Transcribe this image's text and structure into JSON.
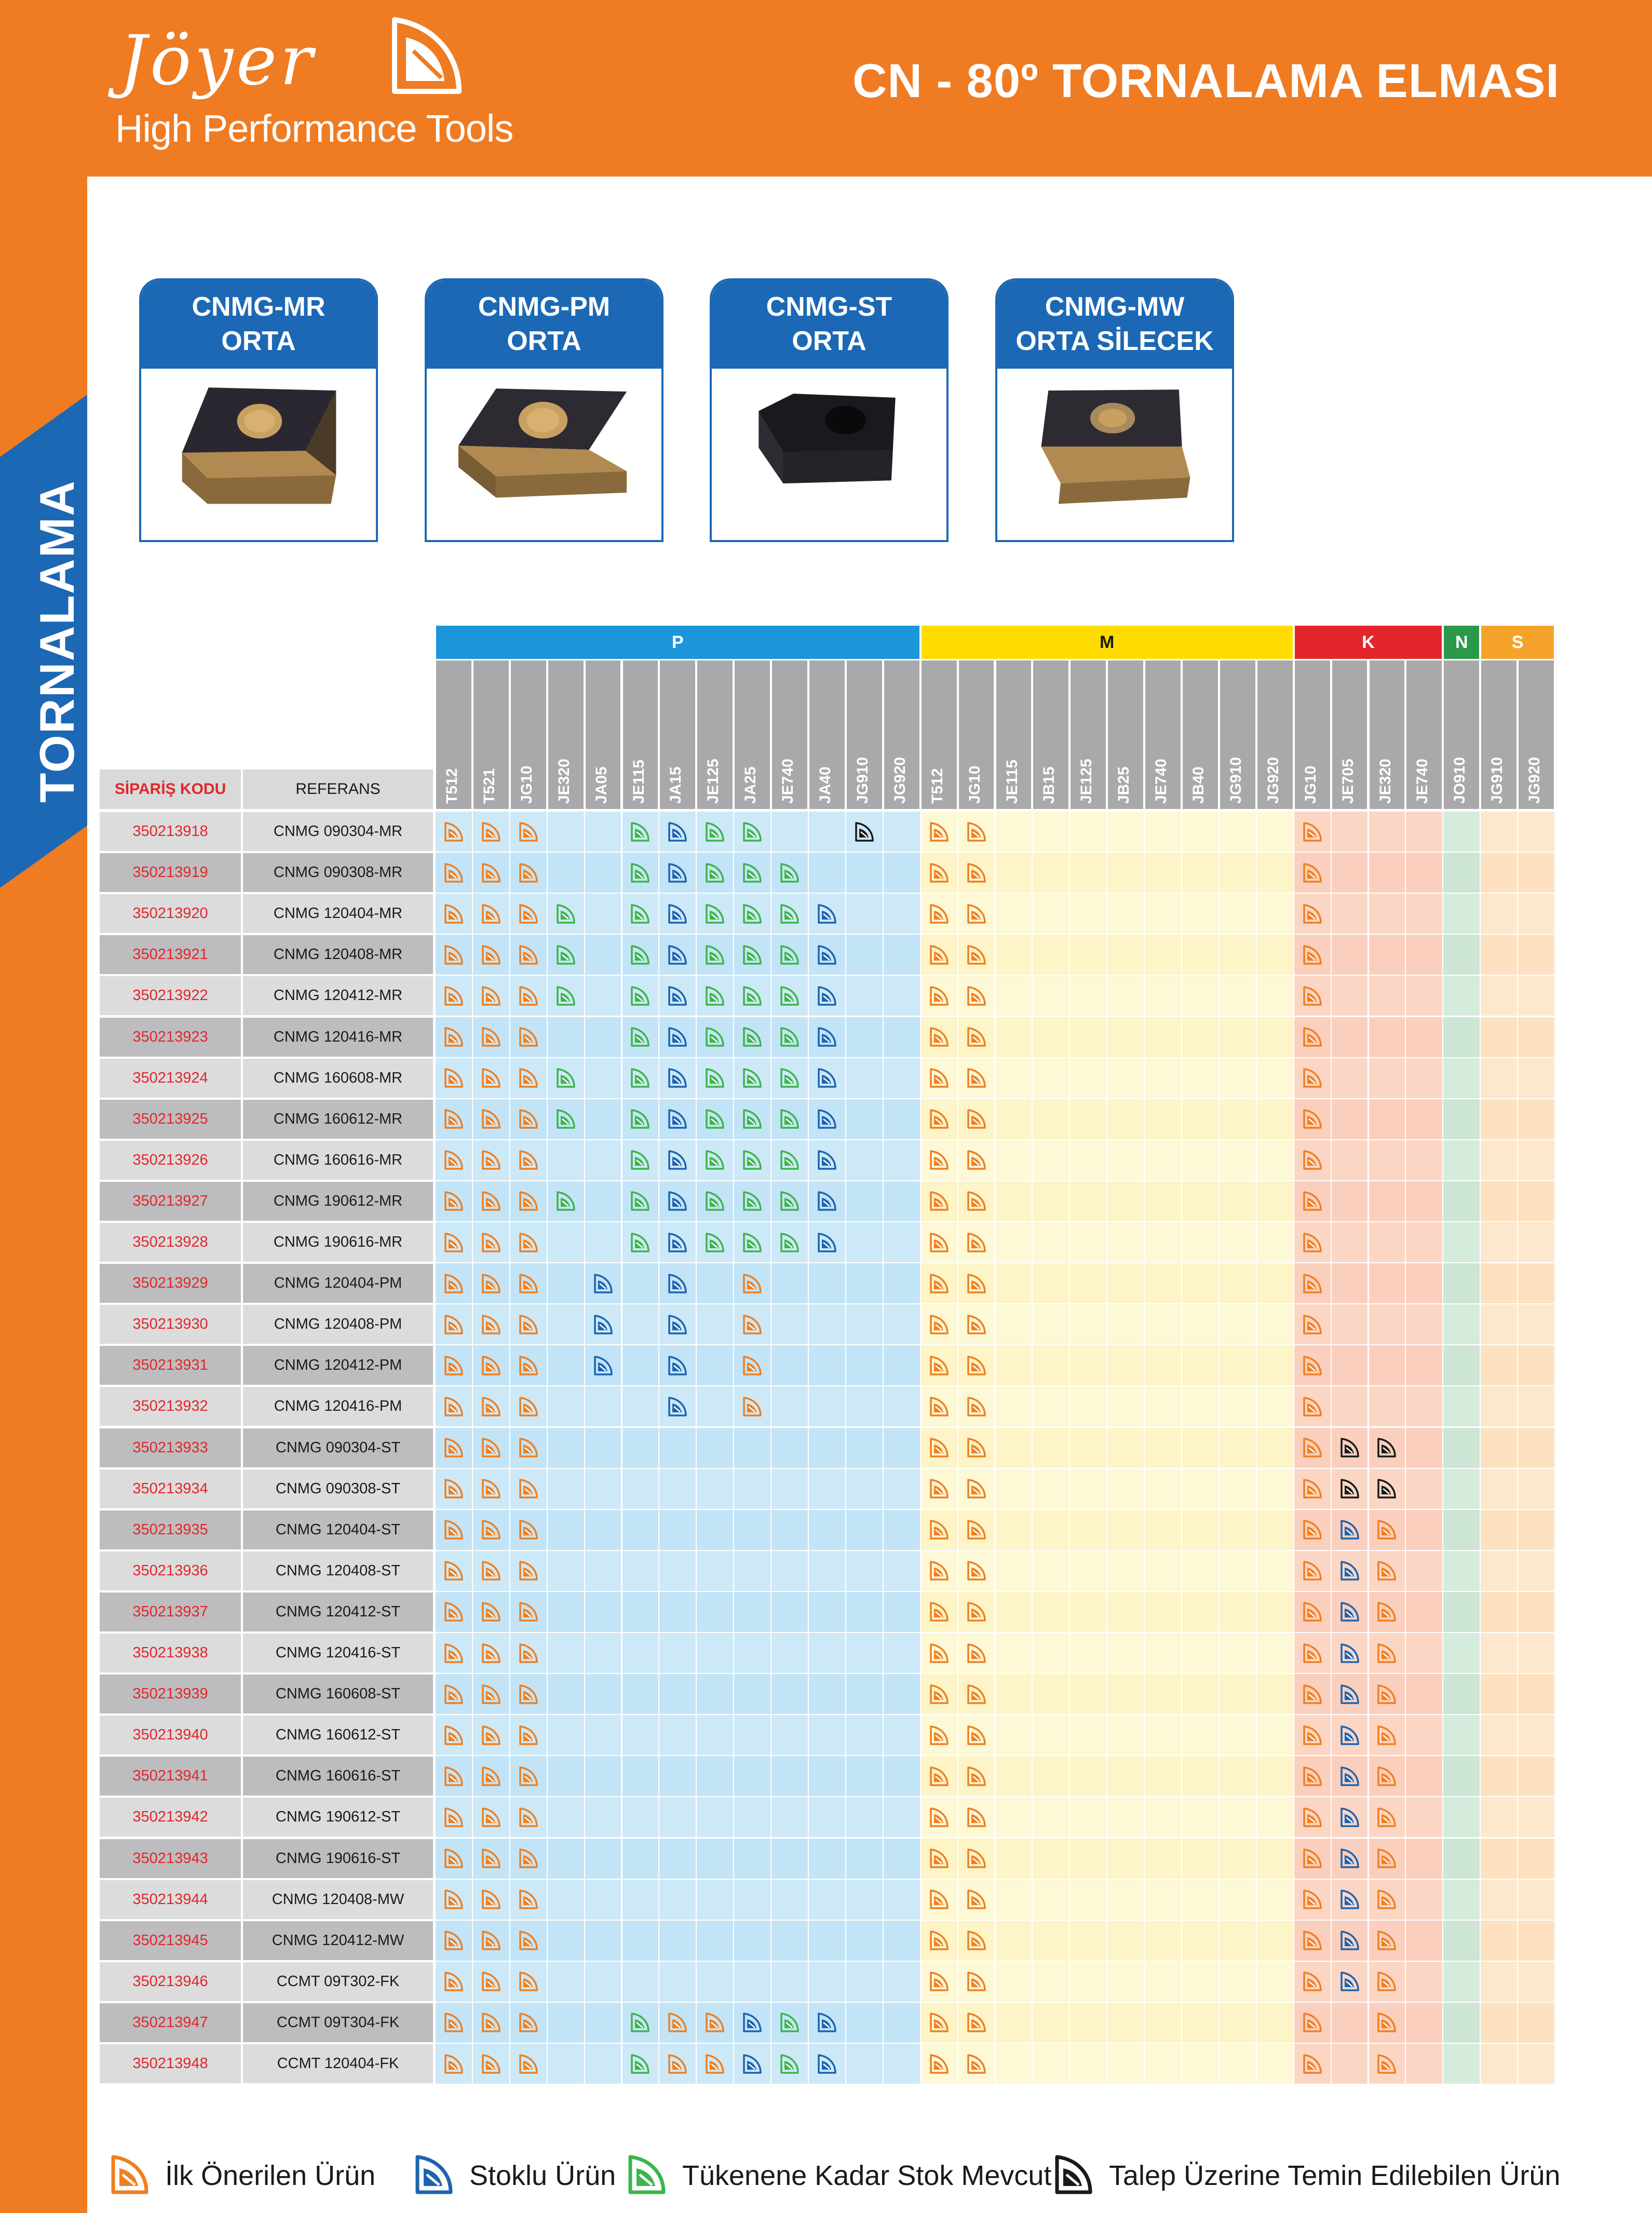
{
  "header": {
    "brand_script": "Jöyer",
    "brand_tagline": "High Performance Tools",
    "title": "CN - 80º TORNALAMA ELMASI"
  },
  "side_label": "TORNALAMA",
  "colors": {
    "orange": "#ef7b22",
    "blue": "#1c68b4",
    "P": "#1b96d8",
    "M": "#ffdc00",
    "K": "#e2262b",
    "N": "#2a9a4a",
    "S": "#f6a32b",
    "icon_orange": "#f07f1f",
    "icon_blue": "#1c64b0",
    "icon_green": "#3cb54a",
    "icon_black": "#1a1a1a"
  },
  "cards": [
    {
      "line1": "CNMG-MR",
      "line2": "ORTA",
      "insert_color": "gold-dark"
    },
    {
      "line1": "CNMG-PM",
      "line2": "ORTA",
      "insert_color": "gold-dark"
    },
    {
      "line1": "CNMG-ST",
      "line2": "ORTA",
      "insert_color": "black"
    },
    {
      "line1": "CNMG-MW",
      "line2": "ORTA SİLECEK",
      "insert_color": "gold-dark"
    }
  ],
  "table": {
    "col_code_header": "SİPARİŞ KODU",
    "col_ref_header": "REFERANS",
    "groups": [
      {
        "key": "P",
        "label": "P",
        "grades": [
          "T512",
          "T521",
          "JG10",
          "JE320",
          "JA05",
          "JE115",
          "JA15",
          "JE125",
          "JA25",
          "JE740",
          "JA40",
          "JG910",
          "JG920"
        ]
      },
      {
        "key": "M",
        "label": "M",
        "grades": [
          "T512",
          "JG10",
          "JE115",
          "JB15",
          "JE125",
          "JB25",
          "JE740",
          "JB40",
          "JG910",
          "JG920"
        ]
      },
      {
        "key": "K",
        "label": "K",
        "grades": [
          "JG10",
          "JE705",
          "JE320",
          "JE740"
        ]
      },
      {
        "key": "N",
        "label": "N",
        "grades": [
          "JO910"
        ]
      },
      {
        "key": "S",
        "label": "S",
        "grades": [
          "JG910",
          "JG920"
        ]
      }
    ],
    "rows": [
      {
        "code": "350213918",
        "ref": "CNMG 090304-MR",
        "icons": {
          "0": "o",
          "1": "o",
          "2": "o",
          "5": "g",
          "6": "b",
          "7": "g",
          "8": "g",
          "11": "k",
          "13": "o",
          "14": "o",
          "23": "o"
        }
      },
      {
        "code": "350213919",
        "ref": "CNMG 090308-MR",
        "icons": {
          "0": "o",
          "1": "o",
          "2": "o",
          "5": "g",
          "6": "b",
          "7": "g",
          "8": "g",
          "9": "g",
          "13": "o",
          "14": "o",
          "23": "o"
        }
      },
      {
        "code": "350213920",
        "ref": "CNMG 120404-MR",
        "icons": {
          "0": "o",
          "1": "o",
          "2": "o",
          "3": "g",
          "5": "g",
          "6": "b",
          "7": "g",
          "8": "g",
          "9": "g",
          "10": "b",
          "13": "o",
          "14": "o",
          "23": "o"
        }
      },
      {
        "code": "350213921",
        "ref": "CNMG 120408-MR",
        "icons": {
          "0": "o",
          "1": "o",
          "2": "o",
          "3": "g",
          "5": "g",
          "6": "b",
          "7": "g",
          "8": "g",
          "9": "g",
          "10": "b",
          "13": "o",
          "14": "o",
          "23": "o"
        }
      },
      {
        "code": "350213922",
        "ref": "CNMG 120412-MR",
        "icons": {
          "0": "o",
          "1": "o",
          "2": "o",
          "3": "g",
          "5": "g",
          "6": "b",
          "7": "g",
          "8": "g",
          "9": "g",
          "10": "b",
          "13": "o",
          "14": "o",
          "23": "o"
        }
      },
      {
        "code": "350213923",
        "ref": "CNMG 120416-MR",
        "icons": {
          "0": "o",
          "1": "o",
          "2": "o",
          "5": "g",
          "6": "b",
          "7": "g",
          "8": "g",
          "9": "g",
          "10": "b",
          "13": "o",
          "14": "o",
          "23": "o"
        }
      },
      {
        "code": "350213924",
        "ref": "CNMG 160608-MR",
        "icons": {
          "0": "o",
          "1": "o",
          "2": "o",
          "3": "g",
          "5": "g",
          "6": "b",
          "7": "g",
          "8": "g",
          "9": "g",
          "10": "b",
          "13": "o",
          "14": "o",
          "23": "o"
        }
      },
      {
        "code": "350213925",
        "ref": "CNMG 160612-MR",
        "icons": {
          "0": "o",
          "1": "o",
          "2": "o",
          "3": "g",
          "5": "g",
          "6": "b",
          "7": "g",
          "8": "g",
          "9": "g",
          "10": "b",
          "13": "o",
          "14": "o",
          "23": "o"
        }
      },
      {
        "code": "350213926",
        "ref": "CNMG 160616-MR",
        "icons": {
          "0": "o",
          "1": "o",
          "2": "o",
          "5": "g",
          "6": "b",
          "7": "g",
          "8": "g",
          "9": "g",
          "10": "b",
          "13": "o",
          "14": "o",
          "23": "o"
        }
      },
      {
        "code": "350213927",
        "ref": "CNMG 190612-MR",
        "icons": {
          "0": "o",
          "1": "o",
          "2": "o",
          "3": "g",
          "5": "g",
          "6": "b",
          "7": "g",
          "8": "g",
          "9": "g",
          "10": "b",
          "13": "o",
          "14": "o",
          "23": "o"
        }
      },
      {
        "code": "350213928",
        "ref": "CNMG 190616-MR",
        "icons": {
          "0": "o",
          "1": "o",
          "2": "o",
          "5": "g",
          "6": "b",
          "7": "g",
          "8": "g",
          "9": "g",
          "10": "b",
          "13": "o",
          "14": "o",
          "23": "o"
        }
      },
      {
        "code": "350213929",
        "ref": "CNMG 120404-PM",
        "icons": {
          "0": "o",
          "1": "o",
          "2": "o",
          "4": "b",
          "6": "b",
          "8": "o",
          "13": "o",
          "14": "o",
          "23": "o"
        }
      },
      {
        "code": "350213930",
        "ref": "CNMG 120408-PM",
        "icons": {
          "0": "o",
          "1": "o",
          "2": "o",
          "4": "b",
          "6": "b",
          "8": "o",
          "13": "o",
          "14": "o",
          "23": "o"
        }
      },
      {
        "code": "350213931",
        "ref": "CNMG 120412-PM",
        "icons": {
          "0": "o",
          "1": "o",
          "2": "o",
          "4": "b",
          "6": "b",
          "8": "o",
          "13": "o",
          "14": "o",
          "23": "o"
        }
      },
      {
        "code": "350213932",
        "ref": "CNMG 120416-PM",
        "icons": {
          "0": "o",
          "1": "o",
          "2": "o",
          "6": "b",
          "8": "o",
          "13": "o",
          "14": "o",
          "23": "o"
        }
      },
      {
        "code": "350213933",
        "ref": "CNMG 090304-ST",
        "icons": {
          "0": "o",
          "1": "o",
          "2": "o",
          "13": "o",
          "14": "o",
          "23": "o",
          "24": "k",
          "25": "k"
        }
      },
      {
        "code": "350213934",
        "ref": "CNMG 090308-ST",
        "icons": {
          "0": "o",
          "1": "o",
          "2": "o",
          "13": "o",
          "14": "o",
          "23": "o",
          "24": "k",
          "25": "k"
        }
      },
      {
        "code": "350213935",
        "ref": "CNMG 120404-ST",
        "icons": {
          "0": "o",
          "1": "o",
          "2": "o",
          "13": "o",
          "14": "o",
          "23": "o",
          "24": "b",
          "25": "o"
        }
      },
      {
        "code": "350213936",
        "ref": "CNMG 120408-ST",
        "icons": {
          "0": "o",
          "1": "o",
          "2": "o",
          "13": "o",
          "14": "o",
          "23": "o",
          "24": "b",
          "25": "o"
        }
      },
      {
        "code": "350213937",
        "ref": "CNMG 120412-ST",
        "icons": {
          "0": "o",
          "1": "o",
          "2": "o",
          "13": "o",
          "14": "o",
          "23": "o",
          "24": "b",
          "25": "o"
        }
      },
      {
        "code": "350213938",
        "ref": "CNMG 120416-ST",
        "icons": {
          "0": "o",
          "1": "o",
          "2": "o",
          "13": "o",
          "14": "o",
          "23": "o",
          "24": "b",
          "25": "o"
        }
      },
      {
        "code": "350213939",
        "ref": "CNMG 160608-ST",
        "icons": {
          "0": "o",
          "1": "o",
          "2": "o",
          "13": "o",
          "14": "o",
          "23": "o",
          "24": "b",
          "25": "o"
        }
      },
      {
        "code": "350213940",
        "ref": "CNMG 160612-ST",
        "icons": {
          "0": "o",
          "1": "o",
          "2": "o",
          "13": "o",
          "14": "o",
          "23": "o",
          "24": "b",
          "25": "o"
        }
      },
      {
        "code": "350213941",
        "ref": "CNMG 160616-ST",
        "icons": {
          "0": "o",
          "1": "o",
          "2": "o",
          "13": "o",
          "14": "o",
          "23": "o",
          "24": "b",
          "25": "o"
        }
      },
      {
        "code": "350213942",
        "ref": "CNMG 190612-ST",
        "icons": {
          "0": "o",
          "1": "o",
          "2": "o",
          "13": "o",
          "14": "o",
          "23": "o",
          "24": "b",
          "25": "o"
        }
      },
      {
        "code": "350213943",
        "ref": "CNMG 190616-ST",
        "icons": {
          "0": "o",
          "1": "o",
          "2": "o",
          "13": "o",
          "14": "o",
          "23": "o",
          "24": "b",
          "25": "o"
        }
      },
      {
        "code": "350213944",
        "ref": "CNMG 120408-MW",
        "icons": {
          "0": "o",
          "1": "o",
          "2": "o",
          "13": "o",
          "14": "o",
          "23": "o",
          "24": "b",
          "25": "o"
        }
      },
      {
        "code": "350213945",
        "ref": "CNMG 120412-MW",
        "icons": {
          "0": "o",
          "1": "o",
          "2": "o",
          "13": "o",
          "14": "o",
          "23": "o",
          "24": "b",
          "25": "o"
        }
      },
      {
        "code": "350213946",
        "ref": "CCMT 09T302-FK",
        "icons": {
          "0": "o",
          "1": "o",
          "2": "o",
          "13": "o",
          "14": "o",
          "23": "o",
          "24": "b",
          "25": "o"
        }
      },
      {
        "code": "350213947",
        "ref": "CCMT 09T304-FK",
        "icons": {
          "0": "o",
          "1": "o",
          "2": "o",
          "5": "g",
          "6": "o",
          "7": "o",
          "8": "b",
          "9": "g",
          "10": "b",
          "13": "o",
          "14": "o",
          "23": "o",
          "25": "o"
        }
      },
      {
        "code": "350213948",
        "ref": "CCMT 120404-FK",
        "icons": {
          "0": "o",
          "1": "o",
          "2": "o",
          "5": "g",
          "6": "o",
          "7": "o",
          "8": "b",
          "9": "g",
          "10": "b",
          "13": "o",
          "14": "o",
          "23": "o",
          "25": "o"
        }
      }
    ]
  },
  "legend": [
    {
      "color": "orange",
      "text": "İlk Önerilen Ürün"
    },
    {
      "color": "blue",
      "text": "Stoklu Ürün"
    },
    {
      "color": "green",
      "text": "Tükenene Kadar Stok Mevcut"
    },
    {
      "color": "black",
      "text": "Talep Üzerine Temin Edilebilen Ürün"
    }
  ]
}
